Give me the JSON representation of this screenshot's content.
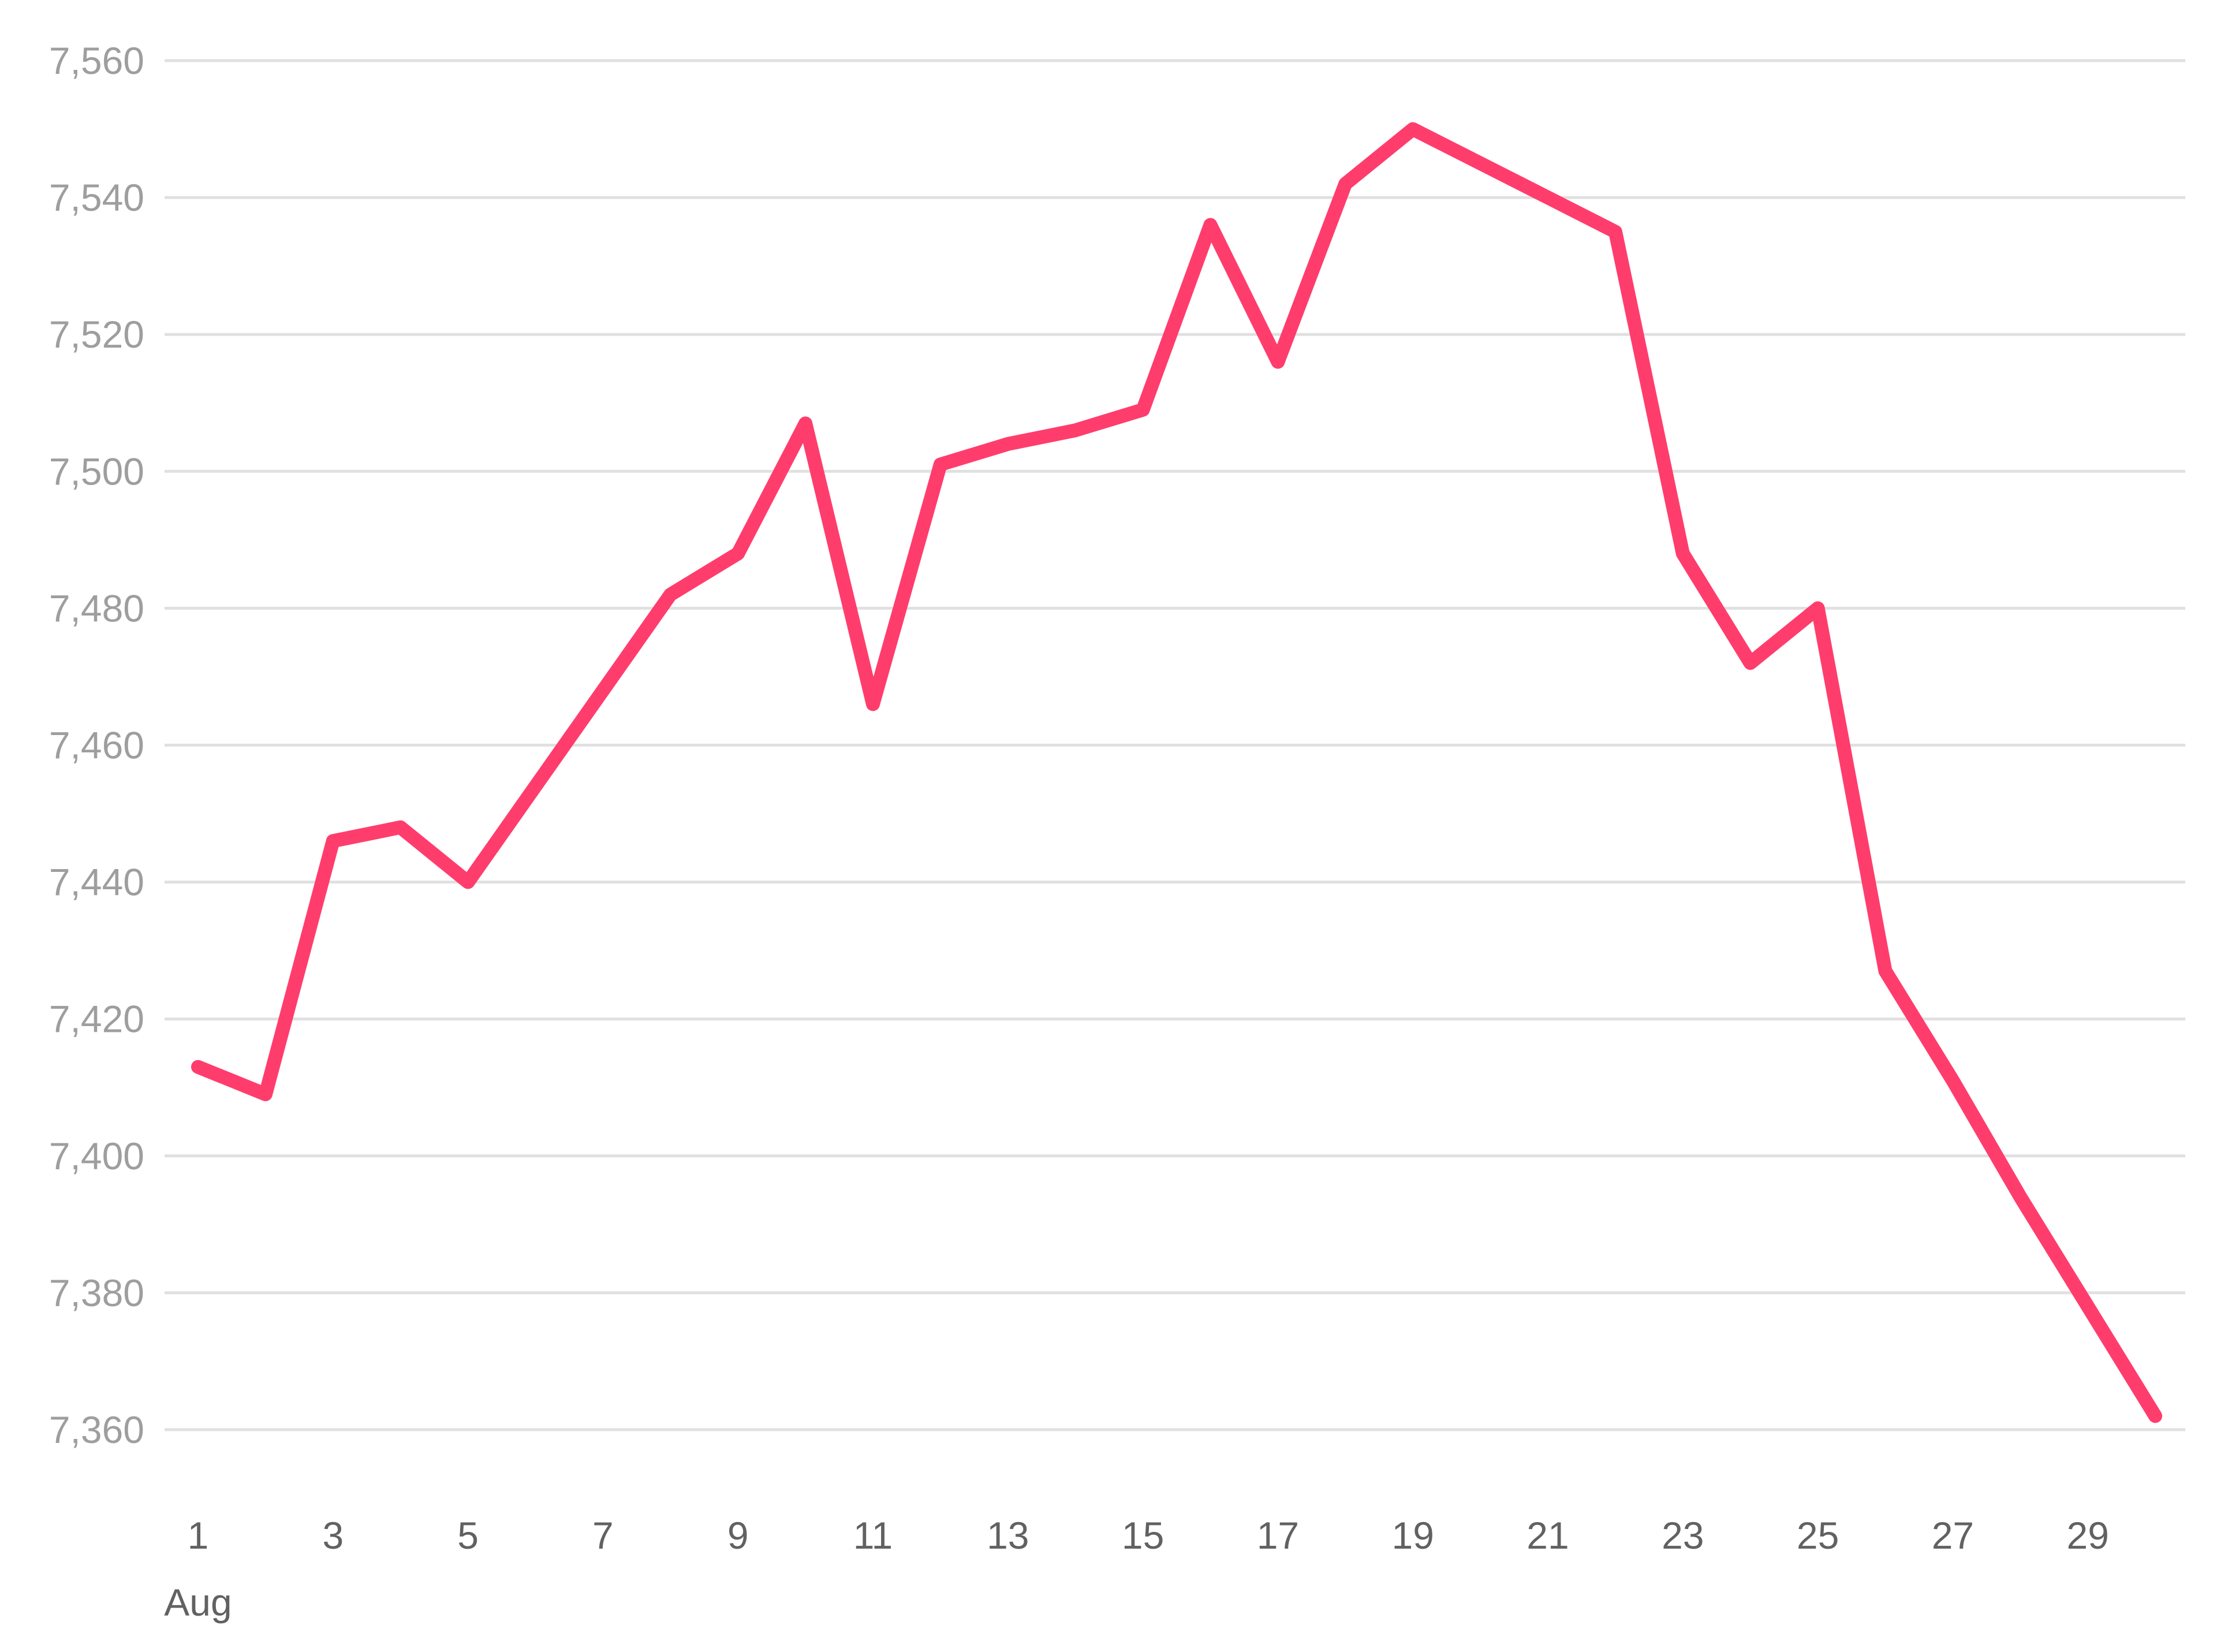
{
  "chart_data": {
    "type": "line",
    "title": "",
    "xlabel": "",
    "ylabel": "",
    "x": [
      1,
      2,
      3,
      4,
      5,
      6,
      7,
      8,
      9,
      10,
      11,
      12,
      13,
      14,
      15,
      16,
      17,
      18,
      19,
      20,
      21,
      22,
      23,
      24,
      25,
      26,
      27,
      28,
      29,
      30
    ],
    "series": [
      {
        "color": "#ff3d6c",
        "values": [
          7413,
          7409,
          7446,
          7448,
          7440,
          7454,
          7468,
          7482,
          7488,
          7507,
          7466,
          7501,
          7504,
          7506,
          7509,
          7536,
          7516,
          7542,
          7550,
          7545,
          7540,
          7535,
          7488,
          7472,
          7480,
          7427,
          7411,
          7394,
          7378,
          7362
        ]
      }
    ],
    "x_ticks": [
      {
        "x": 1,
        "label": "1"
      },
      {
        "x": 3,
        "label": "3"
      },
      {
        "x": 5,
        "label": "5"
      },
      {
        "x": 7,
        "label": "7"
      },
      {
        "x": 9,
        "label": "9"
      },
      {
        "x": 11,
        "label": "11"
      },
      {
        "x": 13,
        "label": "13"
      },
      {
        "x": 15,
        "label": "15"
      },
      {
        "x": 17,
        "label": "17"
      },
      {
        "x": 19,
        "label": "19"
      },
      {
        "x": 21,
        "label": "21"
      },
      {
        "x": 23,
        "label": "23"
      },
      {
        "x": 25,
        "label": "25"
      },
      {
        "x": 27,
        "label": "27"
      },
      {
        "x": 29,
        "label": "29"
      }
    ],
    "x_sublabel": "Aug",
    "y_ticks": [
      {
        "value": 7360,
        "label": "7,360"
      },
      {
        "value": 7380,
        "label": "7,380"
      },
      {
        "value": 7400,
        "label": "7,400"
      },
      {
        "value": 7420,
        "label": "7,420"
      },
      {
        "value": 7440,
        "label": "7,440"
      },
      {
        "value": 7460,
        "label": "7,460"
      },
      {
        "value": 7480,
        "label": "7,480"
      },
      {
        "value": 7500,
        "label": "7,500"
      },
      {
        "value": 7520,
        "label": "7,520"
      },
      {
        "value": 7540,
        "label": "7,540"
      },
      {
        "value": 7560,
        "label": "7,560"
      }
    ],
    "ylim": [
      7360,
      7560
    ],
    "xlim": [
      1,
      30
    ],
    "grid": true,
    "legend": "none"
  }
}
